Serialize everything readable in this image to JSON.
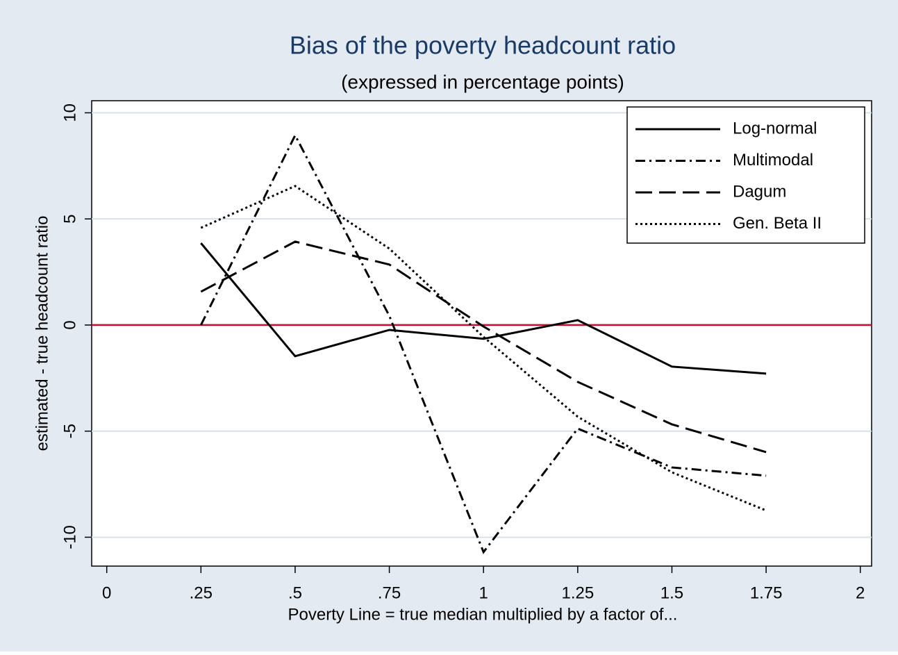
{
  "chart_data": {
    "type": "line",
    "title": "Bias of the poverty headcount ratio",
    "subtitle": "(expressed in percentage points)",
    "x_label": "Poverty Line = true median multiplied by a factor of...",
    "y_label": "estimated - true headcount ratio",
    "x": [
      0.25,
      0.5,
      0.75,
      1,
      1.25,
      1.5,
      1.75
    ],
    "series": [
      {
        "name": "Log-normal",
        "color": "#000000",
        "style": "solid",
        "values": [
          3.86,
          -1.47,
          -0.23,
          -0.65,
          0.23,
          -1.96,
          -2.29
        ]
      },
      {
        "name": "Multimodal",
        "color": "#000000",
        "style": "dashdot",
        "values": [
          0,
          8.94,
          0.43,
          -10.7,
          -4.88,
          -6.71,
          -7.1
        ]
      },
      {
        "name": "Dagum",
        "color": "#000000",
        "style": "dash",
        "values": [
          1.57,
          3.93,
          2.85,
          -0.07,
          -2.68,
          -4.68,
          -5.99
        ]
      },
      {
        "name": "Gen. Beta II",
        "color": "#000000",
        "style": "dot",
        "values": [
          4.58,
          6.55,
          3.6,
          -0.56,
          -4.32,
          -6.94,
          -8.74
        ]
      }
    ],
    "xlim": [
      -0.04,
      2.03
    ],
    "ylim": [
      -11.36,
      10.57
    ],
    "xticks": [
      0,
      {
        "value": 0.25,
        "label": ".25"
      },
      {
        "value": 0.5,
        "label": ".5"
      },
      {
        "value": 0.75,
        "label": ".75"
      },
      1,
      1.25,
      1.5,
      1.75,
      2
    ],
    "yticks": [
      -10,
      -5,
      0,
      5,
      10
    ],
    "grid": true,
    "reference_line": {
      "value": 0,
      "color": "#c8102e"
    },
    "legend": "top-right"
  }
}
